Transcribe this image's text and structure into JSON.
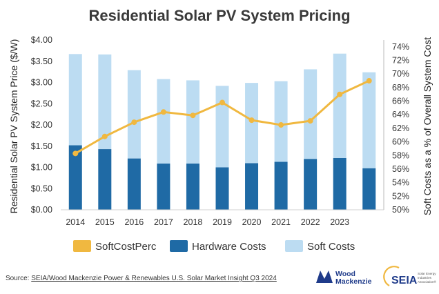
{
  "chart_data": {
    "type": "bar",
    "title": "Residential Solar PV System Pricing",
    "categories": [
      "2014",
      "2015",
      "2016",
      "2017",
      "2018",
      "2019",
      "2020",
      "2021",
      "2022",
      "2023",
      ""
    ],
    "series": [
      {
        "name": "Hardware Costs",
        "values": [
          1.52,
          1.43,
          1.21,
          1.09,
          1.09,
          1.0,
          1.1,
          1.13,
          1.2,
          1.22,
          0.98
        ],
        "color": "#1f6aa5",
        "axis": "left",
        "stack": "cost"
      },
      {
        "name": "Soft Costs",
        "values": [
          2.15,
          2.23,
          2.08,
          1.99,
          1.96,
          1.92,
          1.89,
          1.9,
          2.11,
          2.46,
          2.26
        ],
        "color": "#bcdcf2",
        "axis": "left",
        "stack": "cost"
      },
      {
        "name": "SoftCostPerc",
        "values": [
          58.3,
          60.8,
          62.9,
          64.4,
          63.9,
          65.8,
          63.2,
          62.5,
          63.1,
          67.0,
          69.0
        ],
        "color": "#f0b840",
        "axis": "right",
        "render": "line"
      }
    ],
    "ylabel": "Residential Solar PV System Price ($/W)",
    "y2label": "Soft Costs as a % of Overall System Cost",
    "ylim": [
      0,
      4
    ],
    "y_ticks": [
      "$0.00",
      "$0.50",
      "$1.00",
      "$1.50",
      "$2.00",
      "$2.50",
      "$3.00",
      "$3.50",
      "$4.00"
    ],
    "y2lim": [
      50,
      75
    ],
    "y2_ticks": [
      "50%",
      "52%",
      "54%",
      "56%",
      "58%",
      "60%",
      "62%",
      "64%",
      "66%",
      "68%",
      "70%",
      "72%",
      "74%"
    ],
    "legend": {
      "placement": "bottom",
      "entries": [
        "SoftCostPerc",
        "Hardware Costs",
        "Soft Costs"
      ]
    },
    "grid": false
  },
  "source": {
    "prefix": "Source: ",
    "link_text": "SEIA/Wood Mackenzie Power & Renewables U.S. Solar Market Insight Q3 2024"
  },
  "logos": {
    "woodmac": [
      "Wood",
      "Mackenzie"
    ],
    "seia": "SEIA",
    "seia_tagline": [
      "Solar Energy",
      "Industries",
      "Association®"
    ]
  },
  "colors": {
    "hardware": "#1f6aa5",
    "soft": "#bcdcf2",
    "line": "#f0b840",
    "logo_blue": "#1f3b8a"
  }
}
